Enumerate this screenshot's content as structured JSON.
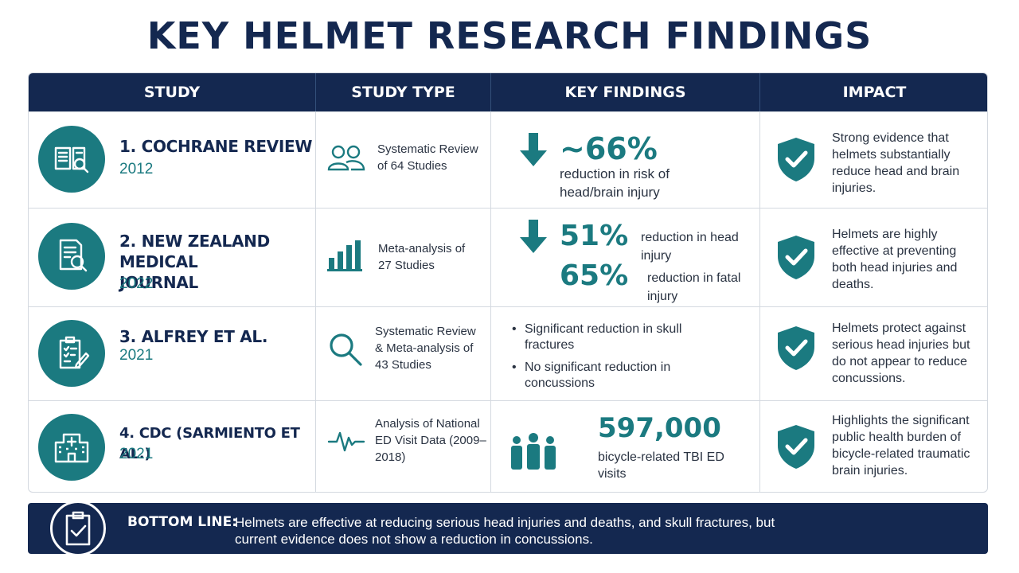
{
  "title": "KEY HELMET RESEARCH FINDINGS",
  "headers": [
    "STUDY",
    "STUDY TYPE",
    "KEY FINDINGS",
    "IMPACT"
  ],
  "rows": [
    {
      "study_name": "1. COCHRANE REVIEW",
      "year": "2012",
      "study_icon": "book-search-icon",
      "type_icon": "people-icon",
      "type": "Systematic Review of 64 Studies",
      "finding_value": "~66%",
      "finding_text": "reduction in risk of head/brain injury",
      "impact": "Strong evidence that helmets substantially reduce head and brain injuries."
    },
    {
      "study_name": "2. NEW ZEALAND MEDICAL JOURNAL",
      "year": "2022",
      "study_icon": "document-search-icon",
      "type_icon": "bar-chart-icon",
      "type": "Meta-analysis of 27 Studies",
      "finding_value_1": "51%",
      "finding_text_1": "reduction in head injury",
      "finding_value_2": "65%",
      "finding_text_2": "reduction in fatal injury",
      "impact": "Helmets are highly effective at preventing both head injuries and deaths."
    },
    {
      "study_name": "3. ALFREY ET AL.",
      "year": "2021",
      "study_icon": "clipboard-edit-icon",
      "type_icon": "magnifier-icon",
      "type": "Systematic Review & Meta-analysis of 43 Studies",
      "bullet_1": "Significant reduction in skull fractures",
      "bullet_2": "No significant reduction in concussions",
      "impact": "Helmets protect against serious head injuries but do not appear to reduce concussions."
    },
    {
      "study_name": "4. CDC (SARMIENTO ET AL.)",
      "year": "2021",
      "study_icon": "hospital-icon",
      "type_icon": "pulse-icon",
      "type": "Analysis of National ED Visit Data (2009–2018)",
      "finding_value": "597,000",
      "finding_text": "bicycle-related TBI ED visits",
      "impact": "Highlights the significant public health burden of bicycle-related traumatic brain injuries."
    }
  ],
  "bottom": {
    "label": "BOTTOM LINE:",
    "text": "Helmets are effective at reducing serious head injuries and deaths, and skull fractures, but current evidence does not show a reduction in concussions.",
    "icon": "clipboard-check-icon"
  },
  "colors": {
    "navy": "#142850",
    "teal": "#1b7a80"
  }
}
